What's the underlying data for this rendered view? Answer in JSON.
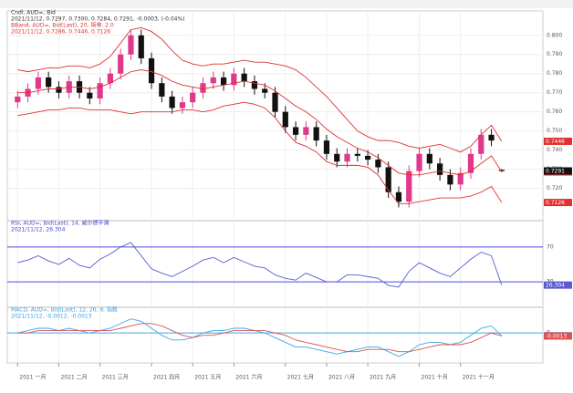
{
  "chart_data": [
    {
      "type": "candlestick",
      "legend": [
        {
          "text": "Cndl, AUD=, Bid",
          "color": "#333333"
        },
        {
          "text": "2021/11/12, 0.7297, 0.7300, 0.7284, 0.7291, -0.0003, (-0.04%)",
          "color": "#333333"
        },
        {
          "text": "BBand, AUD=, Bid(Last), 20, 简单, 2.0",
          "color": "#e03030"
        },
        {
          "text": "2021/11/12, 0.7286, 0.7446, 0.7126",
          "color": "#e03030"
        }
      ],
      "up_color": "#e0388a",
      "down_color": "#111111",
      "open": [
        0.765,
        0.768,
        0.772,
        0.778,
        0.773,
        0.77,
        0.776,
        0.77,
        0.767,
        0.775,
        0.78,
        0.79,
        0.8,
        0.788,
        0.775,
        0.768,
        0.762,
        0.765,
        0.77,
        0.775,
        0.778,
        0.774,
        0.78,
        0.776,
        0.772,
        0.77,
        0.76,
        0.752,
        0.748,
        0.752,
        0.745,
        0.738,
        0.734,
        0.738,
        0.737,
        0.735,
        0.731,
        0.718,
        0.713,
        0.729,
        0.738,
        0.733,
        0.727,
        0.722,
        0.728,
        0.738,
        0.748,
        0.7297
      ],
      "high": [
        0.771,
        0.775,
        0.781,
        0.781,
        0.776,
        0.779,
        0.779,
        0.773,
        0.778,
        0.783,
        0.793,
        0.803,
        0.803,
        0.791,
        0.778,
        0.771,
        0.768,
        0.773,
        0.778,
        0.781,
        0.781,
        0.783,
        0.783,
        0.779,
        0.775,
        0.773,
        0.763,
        0.755,
        0.755,
        0.755,
        0.748,
        0.741,
        0.741,
        0.741,
        0.74,
        0.738,
        0.734,
        0.721,
        0.732,
        0.741,
        0.741,
        0.736,
        0.73,
        0.731,
        0.741,
        0.751,
        0.751,
        0.73
      ],
      "low": [
        0.762,
        0.765,
        0.769,
        0.77,
        0.767,
        0.767,
        0.767,
        0.764,
        0.764,
        0.772,
        0.777,
        0.787,
        0.785,
        0.772,
        0.765,
        0.759,
        0.759,
        0.762,
        0.767,
        0.772,
        0.771,
        0.771,
        0.773,
        0.769,
        0.767,
        0.757,
        0.749,
        0.745,
        0.745,
        0.742,
        0.735,
        0.731,
        0.731,
        0.734,
        0.732,
        0.728,
        0.715,
        0.71,
        0.71,
        0.726,
        0.73,
        0.724,
        0.719,
        0.719,
        0.725,
        0.735,
        0.742,
        0.7284
      ],
      "close": [
        0.768,
        0.772,
        0.778,
        0.773,
        0.77,
        0.776,
        0.77,
        0.767,
        0.775,
        0.78,
        0.79,
        0.8,
        0.788,
        0.775,
        0.768,
        0.762,
        0.765,
        0.77,
        0.775,
        0.778,
        0.774,
        0.78,
        0.776,
        0.772,
        0.77,
        0.76,
        0.752,
        0.748,
        0.752,
        0.745,
        0.738,
        0.734,
        0.738,
        0.737,
        0.735,
        0.731,
        0.718,
        0.713,
        0.729,
        0.738,
        0.733,
        0.727,
        0.722,
        0.728,
        0.738,
        0.748,
        0.745,
        0.7291
      ],
      "series": [
        {
          "color": "#e03030",
          "values": [
            0.782,
            0.781,
            0.782,
            0.783,
            0.783,
            0.784,
            0.784,
            0.783,
            0.785,
            0.789,
            0.796,
            0.803,
            0.804,
            0.802,
            0.798,
            0.792,
            0.787,
            0.785,
            0.784,
            0.785,
            0.785,
            0.786,
            0.787,
            0.786,
            0.786,
            0.785,
            0.784,
            0.782,
            0.778,
            0.773,
            0.768,
            0.762,
            0.756,
            0.75,
            0.747,
            0.745,
            0.745,
            0.744,
            0.742,
            0.741,
            0.742,
            0.743,
            0.741,
            0.739,
            0.742,
            0.748,
            0.753,
            0.7446
          ]
        },
        {
          "color": "#e03030",
          "values": [
            0.77,
            0.77,
            0.771,
            0.772,
            0.772,
            0.773,
            0.773,
            0.772,
            0.773,
            0.775,
            0.778,
            0.781,
            0.782,
            0.781,
            0.779,
            0.776,
            0.774,
            0.773,
            0.772,
            0.773,
            0.774,
            0.775,
            0.776,
            0.775,
            0.774,
            0.771,
            0.767,
            0.763,
            0.76,
            0.756,
            0.751,
            0.747,
            0.744,
            0.741,
            0.739,
            0.736,
            0.732,
            0.728,
            0.727,
            0.727,
            0.728,
            0.729,
            0.728,
            0.727,
            0.729,
            0.733,
            0.737,
            0.7286
          ]
        },
        {
          "color": "#e03030",
          "values": [
            0.758,
            0.759,
            0.76,
            0.761,
            0.761,
            0.762,
            0.762,
            0.761,
            0.761,
            0.761,
            0.76,
            0.759,
            0.76,
            0.76,
            0.76,
            0.76,
            0.761,
            0.761,
            0.76,
            0.761,
            0.763,
            0.764,
            0.765,
            0.764,
            0.762,
            0.757,
            0.75,
            0.744,
            0.742,
            0.739,
            0.734,
            0.732,
            0.732,
            0.732,
            0.731,
            0.727,
            0.719,
            0.712,
            0.712,
            0.713,
            0.714,
            0.715,
            0.715,
            0.715,
            0.716,
            0.718,
            0.721,
            0.7126
          ]
        }
      ],
      "ylim": [
        0.705,
        0.808
      ],
      "yticks": [
        {
          "value": 0.72,
          "label": "0.720"
        },
        {
          "value": 0.73,
          "label": "0.730"
        },
        {
          "value": 0.74,
          "label": "0.740"
        },
        {
          "value": 0.75,
          "label": "0.750"
        },
        {
          "value": 0.76,
          "label": "0.760"
        },
        {
          "value": 0.77,
          "label": "0.770"
        },
        {
          "value": 0.78,
          "label": "0.780"
        },
        {
          "value": 0.79,
          "label": "0.790"
        },
        {
          "value": 0.8,
          "label": "0.800"
        }
      ],
      "grid": true
    },
    {
      "type": "line",
      "legend": [
        {
          "text": "RSI, AUD=, Bid(Last), 14, 威尔德平滑",
          "color": "#4848c8"
        },
        {
          "text": "2021/11/12, 26.304",
          "color": "#4848c8"
        }
      ],
      "series": [
        {
          "color": "#5a5ad0",
          "values": [
            52,
            55,
            60,
            54,
            50,
            57,
            49,
            46,
            56,
            62,
            70,
            75,
            60,
            45,
            40,
            36,
            42,
            48,
            55,
            58,
            52,
            58,
            53,
            48,
            46,
            38,
            34,
            32,
            40,
            35,
            30,
            30,
            38,
            38,
            36,
            34,
            26,
            24,
            42,
            52,
            46,
            40,
            36,
            46,
            56,
            64,
            60,
            26.304
          ]
        }
      ],
      "ylim": [
        5,
        95
      ],
      "yticks": [
        30,
        70
      ],
      "tick_line_color": "#4a4ae0",
      "grid": false
    },
    {
      "type": "line",
      "legend": [
        {
          "text": "MACD, AUD=, Bid(Last), 12, 26, 9, 指数",
          "color": "#3aa0e0"
        },
        {
          "text": "2021/11/12, -0.0012, -0.0013",
          "color": "#3aa0e0"
        }
      ],
      "series": [
        {
          "color": "#3aa8e8",
          "values": [
            0.0,
            0.001,
            0.002,
            0.002,
            0.001,
            0.002,
            0.001,
            0.0,
            0.001,
            0.002,
            0.004,
            0.006,
            0.005,
            0.002,
            -0.001,
            -0.003,
            -0.003,
            -0.002,
            0.0,
            0.001,
            0.001,
            0.002,
            0.002,
            0.001,
            0.0,
            -0.002,
            -0.004,
            -0.006,
            -0.006,
            -0.007,
            -0.008,
            -0.009,
            -0.008,
            -0.007,
            -0.006,
            -0.006,
            -0.008,
            -0.01,
            -0.008,
            -0.005,
            -0.004,
            -0.004,
            -0.005,
            -0.004,
            -0.001,
            0.002,
            0.003,
            -0.0012
          ]
        },
        {
          "color": "#e05050",
          "values": [
            0.0,
            0.0,
            0.001,
            0.001,
            0.001,
            0.001,
            0.001,
            0.001,
            0.001,
            0.001,
            0.002,
            0.003,
            0.004,
            0.004,
            0.003,
            0.001,
            -0.001,
            -0.002,
            -0.001,
            -0.001,
            0.0,
            0.001,
            0.001,
            0.001,
            0.001,
            0.0,
            -0.001,
            -0.003,
            -0.004,
            -0.005,
            -0.006,
            -0.007,
            -0.008,
            -0.008,
            -0.007,
            -0.007,
            -0.007,
            -0.008,
            -0.008,
            -0.007,
            -0.006,
            -0.005,
            -0.005,
            -0.005,
            -0.004,
            -0.002,
            0.0,
            -0.0013
          ]
        }
      ],
      "ylim": [
        -0.012,
        0.009
      ],
      "yticks": [
        0
      ],
      "tick_line_color": "#3aa8e8",
      "grid": false
    }
  ],
  "x_axis": {
    "xlim": [
      -1,
      51
    ],
    "xticks": [
      {
        "value": 0,
        "label": "2021 一月"
      },
      {
        "value": 4,
        "label": "2021 二月"
      },
      {
        "value": 8,
        "label": "2021 三月"
      },
      {
        "value": 13,
        "label": "2021 四月"
      },
      {
        "value": 17,
        "label": "2021 五月"
      },
      {
        "value": 21,
        "label": "2021 六月"
      },
      {
        "value": 26,
        "label": "2021 七月"
      },
      {
        "value": 30,
        "label": "2021 八月"
      },
      {
        "value": 34,
        "label": "2021 九月"
      },
      {
        "value": 39,
        "label": "2021 十月"
      },
      {
        "value": 43,
        "label": "2021 十一月"
      }
    ]
  }
}
